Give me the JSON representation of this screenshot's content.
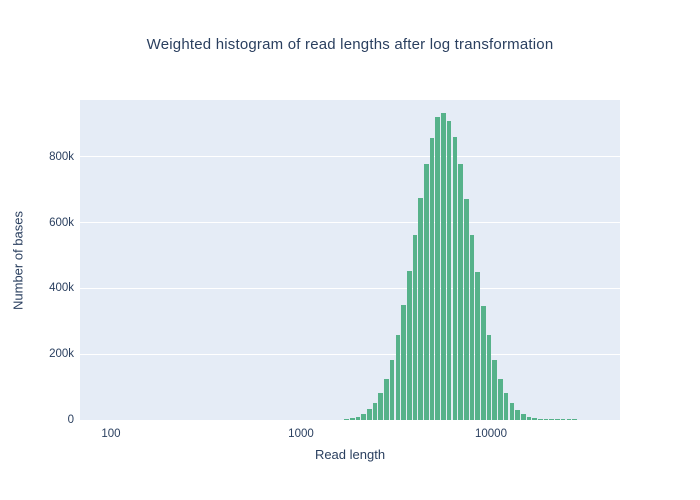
{
  "colors": {
    "bar": "#56b28a",
    "plot_background": "#e5ecf6",
    "gridline": "#ffffff",
    "text": "#2a3f5f",
    "page_background": "#ffffff"
  },
  "chart_data": {
    "type": "bar",
    "title": "Weighted histogram of read lengths after log transformation",
    "xlabel": "Read length",
    "ylabel": "Number of bases",
    "x_scale": "log",
    "grid": true,
    "legend": "none",
    "xlog_range": [
      1.837,
      4.679
    ],
    "ylim": [
      0,
      973000
    ],
    "x_ticks": [
      {
        "value": 100,
        "label": "100"
      },
      {
        "value": 1000,
        "label": "1000"
      },
      {
        "value": 10000,
        "label": "10000"
      }
    ],
    "y_ticks": [
      {
        "value": 0,
        "label": "0"
      },
      {
        "value": 200000,
        "label": "200k"
      },
      {
        "value": 400000,
        "label": "400k"
      },
      {
        "value": 600000,
        "label": "600k"
      },
      {
        "value": 800000,
        "label": "800k"
      }
    ],
    "x": [
      1738,
      1862,
      1995,
      2138,
      2291,
      2455,
      2630,
      2818,
      3020,
      3236,
      3467,
      3715,
      3981,
      4266,
      4571,
      4898,
      5248,
      5623,
      6026,
      6457,
      6918,
      7413,
      7943,
      8511,
      9120,
      9772,
      10471,
      11220,
      12023,
      12882,
      13804,
      14791,
      15849,
      16982,
      18197,
      19498,
      20893,
      22387,
      23988,
      25704,
      27542
    ],
    "values": [
      2000,
      5000,
      10000,
      18000,
      32000,
      52000,
      83000,
      126000,
      184000,
      259000,
      349000,
      453000,
      564000,
      675000,
      777000,
      858000,
      921000,
      934000,
      908000,
      862000,
      779000,
      673000,
      562000,
      451000,
      347000,
      257000,
      183000,
      125000,
      82000,
      52000,
      31000,
      18000,
      10000,
      6000,
      3000,
      1500,
      800,
      400,
      200,
      100,
      50
    ]
  }
}
